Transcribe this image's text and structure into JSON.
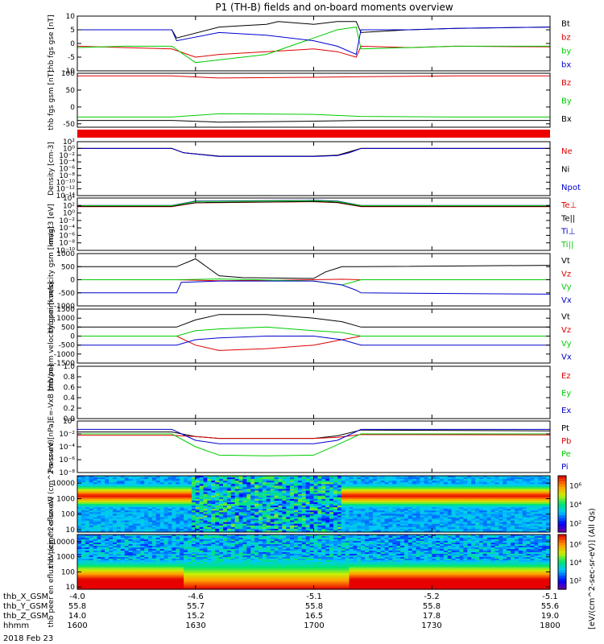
{
  "figure": {
    "title": "P1 (TH-B) fields and on-board moments overview",
    "date": "2018 Feb 23",
    "colorbar_label": "[eV/(cm^2-sec-sr-eV)] (All Qs)"
  },
  "ephemeris": {
    "rows": [
      {
        "label": "thb_X_GSM",
        "values": [
          "-4.0",
          "-4.6",
          "-5.1",
          "-5.2",
          "-5.1"
        ]
      },
      {
        "label": "thb_Y_GSM",
        "values": [
          "55.8",
          "55.7",
          "55.8",
          "55.8",
          "55.6"
        ]
      },
      {
        "label": "thb_Z_GSM",
        "values": [
          "14.0",
          "15.2",
          "16.5",
          "17.8",
          "19.0"
        ]
      },
      {
        "label": "hhmm",
        "values": [
          "1600",
          "1630",
          "1700",
          "1730",
          "1800"
        ]
      }
    ]
  },
  "chart_data": [
    {
      "type": "line",
      "id": "fgs_gse",
      "ylabel": "thb fgs gse [nT]",
      "x_range": [
        1600,
        1800
      ],
      "ylim": [
        -10,
        10
      ],
      "yticks": [
        "10",
        "5",
        "0",
        "-5",
        "-10"
      ],
      "series": [
        {
          "name": "Bt",
          "color": "#000000",
          "x": [
            1600,
            1620,
            1640,
            1642,
            1660,
            1670,
            1680,
            1685,
            1700,
            1710,
            1718,
            1720,
            1740,
            1760,
            1800
          ],
          "y": [
            5,
            5,
            5,
            2,
            6,
            6.5,
            7,
            8,
            7,
            8,
            8,
            4,
            5,
            5.5,
            6
          ]
        },
        {
          "name": "bz",
          "color": "#dd0000",
          "x": [
            1600,
            1620,
            1640,
            1650,
            1660,
            1680,
            1700,
            1710,
            1718,
            1720,
            1740,
            1760,
            1800
          ],
          "y": [
            -1,
            -1.5,
            -2,
            -5,
            -4,
            -3,
            -2,
            -3,
            -5,
            -1,
            -1.5,
            -1,
            -1.2
          ]
        },
        {
          "name": "by",
          "color": "#00cc00",
          "x": [
            1600,
            1620,
            1640,
            1650,
            1660,
            1680,
            1700,
            1710,
            1718,
            1720,
            1740,
            1760,
            1800
          ],
          "y": [
            -1.5,
            -1,
            -1,
            -7,
            -6,
            -4,
            2,
            5,
            6,
            -2,
            -1.5,
            -1,
            -1
          ]
        },
        {
          "name": "bx",
          "color": "#0000cc",
          "x": [
            1600,
            1620,
            1640,
            1642,
            1660,
            1680,
            1700,
            1710,
            1718,
            1720,
            1740,
            1760,
            1800
          ],
          "y": [
            5,
            5,
            5,
            1,
            4,
            3,
            1,
            -1,
            -4,
            5,
            5,
            5.5,
            6
          ]
        }
      ]
    },
    {
      "type": "line",
      "id": "fgs_gsm",
      "ylabel": "thb fgs gsm [nT]",
      "x_range": [
        1600,
        1800
      ],
      "ylim": [
        -60,
        100
      ],
      "yticks": [
        "100",
        "50",
        "0",
        "-50"
      ],
      "series": [
        {
          "name": "Bz",
          "color": "#dd0000",
          "x": [
            1600,
            1640,
            1660,
            1700,
            1720,
            1760,
            1800
          ],
          "y": [
            92,
            92,
            86,
            88,
            90,
            92,
            92
          ]
        },
        {
          "name": "By",
          "color": "#00cc00",
          "x": [
            1600,
            1640,
            1660,
            1700,
            1720,
            1760,
            1800
          ],
          "y": [
            -30,
            -30,
            -20,
            -22,
            -28,
            -30,
            -30
          ]
        },
        {
          "name": "Bx",
          "color": "#000000",
          "x": [
            1600,
            1640,
            1660,
            1700,
            1720,
            1760,
            1800
          ],
          "y": [
            -40,
            -40,
            -45,
            -42,
            -40,
            -40,
            -40
          ]
        }
      ]
    },
    {
      "type": "line",
      "id": "density",
      "ylabel": "Density [cm-3]",
      "scale": "log",
      "x_range": [
        1600,
        1800
      ],
      "ylim": [
        1e-14,
        100
      ],
      "yticks": [
        "10^2",
        "10^0",
        "10^-2",
        "10^-4",
        "10^-6",
        "10^-8",
        "10^-10",
        "10^-12",
        "10^-14"
      ],
      "series": [
        {
          "name": "Ne",
          "color": "#dd0000",
          "x": [
            1600,
            1640,
            1645,
            1660,
            1700,
            1710,
            1715,
            1720,
            1800
          ],
          "y": [
            1,
            1,
            0.05,
            0.005,
            0.005,
            0.008,
            0.05,
            1,
            1
          ]
        },
        {
          "name": "Ni",
          "color": "#000000",
          "x": [
            1600,
            1640,
            1645,
            1660,
            1700,
            1710,
            1715,
            1720,
            1800
          ],
          "y": [
            1,
            1,
            0.05,
            0.005,
            0.005,
            0.01,
            0.1,
            1,
            1
          ]
        },
        {
          "name": "Npot",
          "color": "#0000cc",
          "x": [
            1600,
            1640,
            1645,
            1660,
            1700,
            1710,
            1715,
            1720,
            1800
          ],
          "y": [
            1,
            1,
            0.05,
            0.004,
            0.004,
            0.008,
            0.05,
            1,
            1
          ]
        }
      ]
    },
    {
      "type": "line",
      "id": "temperature",
      "ylabel": "magt3 [eV]",
      "scale": "log",
      "x_range": [
        1600,
        1800
      ],
      "ylim": [
        1e-10,
        10000
      ],
      "yticks": [
        "10^4",
        "10^2",
        "10^0",
        "10^-2",
        "10^-4",
        "10^-6",
        "10^-8",
        "10^-10"
      ],
      "series": [
        {
          "name": "Te⊥",
          "color": "#dd0000",
          "x": [
            1600,
            1640,
            1650,
            1700,
            1710,
            1720,
            1800
          ],
          "y": [
            50,
            50,
            500,
            1000,
            600,
            50,
            50
          ]
        },
        {
          "name": "Te||",
          "color": "#000000",
          "x": [
            1600,
            1640,
            1650,
            1700,
            1710,
            1720,
            1800
          ],
          "y": [
            60,
            60,
            600,
            1200,
            700,
            60,
            60
          ]
        },
        {
          "name": "Ti⊥",
          "color": "#0000cc",
          "x": [
            1600,
            1640,
            1650,
            1700,
            1710,
            1720,
            1800
          ],
          "y": [
            100,
            100,
            1500,
            2500,
            1500,
            100,
            100
          ]
        },
        {
          "name": "Ti||",
          "color": "#00cc00",
          "x": [
            1600,
            1640,
            1650,
            1700,
            1710,
            1720,
            1800
          ],
          "y": [
            90,
            90,
            1200,
            2000,
            1200,
            90,
            90
          ]
        }
      ]
    },
    {
      "type": "line",
      "id": "peim_velocity",
      "ylabel": "thb peim velocity gsm [km/s]",
      "x_range": [
        1600,
        1800
      ],
      "ylim": [
        -1000,
        1000
      ],
      "yticks": [
        "1000",
        "500",
        "0",
        "-500",
        "-1000"
      ],
      "series": [
        {
          "name": "Vt",
          "color": "#000000",
          "x": [
            1600,
            1642,
            1650,
            1660,
            1670,
            1700,
            1705,
            1712,
            1718,
            1800
          ],
          "y": [
            500,
            500,
            800,
            150,
            80,
            50,
            300,
            500,
            500,
            550
          ]
        },
        {
          "name": "Vz",
          "color": "#dd0000",
          "x": [
            1600,
            1642,
            1660,
            1700,
            1712,
            1720,
            1800
          ],
          "y": [
            0,
            0,
            -40,
            0,
            20,
            0,
            0
          ]
        },
        {
          "name": "Vy",
          "color": "#00cc00",
          "x": [
            1600,
            1642,
            1660,
            1700,
            1712,
            1720,
            1800
          ],
          "y": [
            0,
            0,
            30,
            -50,
            -200,
            0,
            0
          ]
        },
        {
          "name": "Vx",
          "color": "#0000cc",
          "x": [
            1600,
            1642,
            1644,
            1660,
            1700,
            1712,
            1718,
            1720,
            1800
          ],
          "y": [
            -500,
            -500,
            -100,
            -50,
            -50,
            -200,
            -400,
            -500,
            -550
          ]
        }
      ]
    },
    {
      "type": "line",
      "id": "peem_velocity",
      "ylabel": "thb peem velocity gsm [km/s]",
      "x_range": [
        1600,
        1800
      ],
      "ylim": [
        -1500,
        1500
      ],
      "yticks": [
        "1500",
        "1000",
        "500",
        "0",
        "-500",
        "-1000",
        "-1500"
      ],
      "series": [
        {
          "name": "Vt",
          "color": "#000000",
          "x": [
            1600,
            1642,
            1650,
            1660,
            1680,
            1700,
            1712,
            1720,
            1800
          ],
          "y": [
            500,
            500,
            900,
            1200,
            1200,
            1000,
            800,
            500,
            500
          ]
        },
        {
          "name": "Vz",
          "color": "#dd0000",
          "x": [
            1600,
            1642,
            1650,
            1660,
            1680,
            1700,
            1712,
            1720,
            1800
          ],
          "y": [
            0,
            0,
            -500,
            -800,
            -700,
            -500,
            -200,
            0,
            0
          ]
        },
        {
          "name": "Vy",
          "color": "#00cc00",
          "x": [
            1600,
            1642,
            1650,
            1660,
            1680,
            1700,
            1712,
            1720,
            1800
          ],
          "y": [
            0,
            0,
            300,
            400,
            500,
            300,
            200,
            0,
            0
          ]
        },
        {
          "name": "Vx",
          "color": "#0000cc",
          "x": [
            1600,
            1642,
            1650,
            1660,
            1680,
            1700,
            1712,
            1720,
            1800
          ],
          "y": [
            -500,
            -500,
            -200,
            -100,
            0,
            0,
            -200,
            -500,
            -500
          ]
        }
      ]
    },
    {
      "type": "line",
      "id": "efield",
      "ylabel": "E=-VxB [mV/m]",
      "x_range": [
        1600,
        1800
      ],
      "ylim": [
        0,
        1
      ],
      "yticks": [
        "1.0",
        "0.8",
        "0.6",
        "0.4",
        "0.2",
        "0.0"
      ],
      "series": [
        {
          "name": "Ez",
          "color": "#dd0000",
          "x": [],
          "y": []
        },
        {
          "name": "Ey",
          "color": "#00cc00",
          "x": [],
          "y": []
        },
        {
          "name": "Ex",
          "color": "#0000cc",
          "x": [],
          "y": []
        }
      ]
    },
    {
      "type": "line",
      "id": "pressure",
      "ylabel": "Pressure [nPa]",
      "scale": "log",
      "x_range": [
        1600,
        1800
      ],
      "ylim": [
        1e-08,
        1
      ],
      "yticks": [
        "10^0",
        "10^-2",
        "10^-4",
        "10^-6",
        "10^-8"
      ],
      "series": [
        {
          "name": "Pt",
          "color": "#000000",
          "x": [
            1600,
            1640,
            1650,
            1660,
            1700,
            1710,
            1720,
            1800
          ],
          "y": [
            0.02,
            0.02,
            0.004,
            0.002,
            0.002,
            0.005,
            0.04,
            0.03
          ]
        },
        {
          "name": "Pb",
          "color": "#dd0000",
          "x": [
            1600,
            1640,
            1650,
            1660,
            1700,
            1710,
            1720,
            1800
          ],
          "y": [
            0.006,
            0.006,
            0.004,
            0.002,
            0.002,
            0.003,
            0.008,
            0.007
          ]
        },
        {
          "name": "Pe",
          "color": "#00cc00",
          "x": [
            1600,
            1640,
            1650,
            1660,
            1680,
            1700,
            1710,
            1720,
            1800
          ],
          "y": [
            0.01,
            0.01,
            0.0001,
            5e-06,
            4e-06,
            5e-06,
            0.0002,
            0.01,
            0.01
          ]
        },
        {
          "name": "Pi",
          "color": "#0000cc",
          "x": [
            1600,
            1640,
            1650,
            1660,
            1700,
            1710,
            1720,
            1800
          ],
          "y": [
            0.05,
            0.05,
            0.001,
            0.0003,
            0.0003,
            0.001,
            0.05,
            0.05
          ]
        }
      ]
    },
    {
      "type": "heatmap",
      "id": "peir_spec",
      "ylabel": "thb peir en eflux eV (cm^2-s-sr-eV)",
      "x_range": [
        1600,
        1800
      ],
      "ylim": [
        7,
        30000
      ],
      "scale": "log",
      "yticks": [
        "10000",
        "1000",
        "100",
        "10"
      ],
      "colorbar_ticks": [
        "10^6",
        "10^4",
        "10^2"
      ],
      "band_center_eV": 1500,
      "band_gap": [
        1648,
        1712
      ]
    },
    {
      "type": "heatmap",
      "id": "peer_spec",
      "ylabel": "thb peer en eflux eV (cm^2-s-sr-eV)",
      "x_range": [
        1600,
        1800
      ],
      "ylim": [
        7,
        30000
      ],
      "scale": "log",
      "yticks": [
        "10000",
        "1000",
        "100",
        "10"
      ],
      "colorbar_ticks": [
        "10^6",
        "10^4",
        "10^2"
      ],
      "band_gap": [
        1645,
        1715
      ]
    }
  ]
}
